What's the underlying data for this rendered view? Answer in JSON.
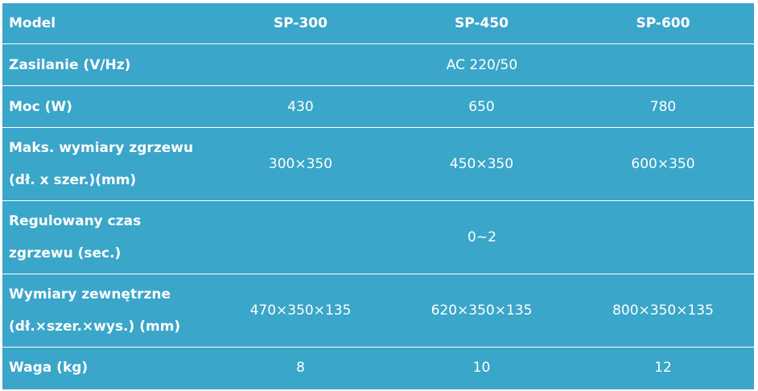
{
  "table": {
    "headers": [
      "Model",
      "SP-300",
      "SP-450",
      "SP-600"
    ],
    "rows": {
      "zasilanie": {
        "label": "Zasilanie (V/Hz)",
        "value": "AC 220/50"
      },
      "moc": {
        "label": "Moc (W)",
        "values": [
          "430",
          "650",
          "780"
        ]
      },
      "maks": {
        "label_line1": "Maks. wymiary zgrzewu",
        "label_line2": "(dł. x szer.)(mm)",
        "values": [
          "300×350",
          "450×350",
          "600×350"
        ]
      },
      "regulowany": {
        "label_line1": "Regulowany czas",
        "label_line2": "zgrzewu (sec.)",
        "value": "0~2"
      },
      "wymiary": {
        "label_line1": "Wymiary zewnętrzne",
        "label_line2": "(dł.×szer.×wys.) (mm)",
        "values": [
          "470×350×135",
          "620×350×135",
          "800×350×135"
        ]
      },
      "waga": {
        "label": "Waga (kg)",
        "values": [
          "8",
          "10",
          "12"
        ]
      }
    }
  }
}
